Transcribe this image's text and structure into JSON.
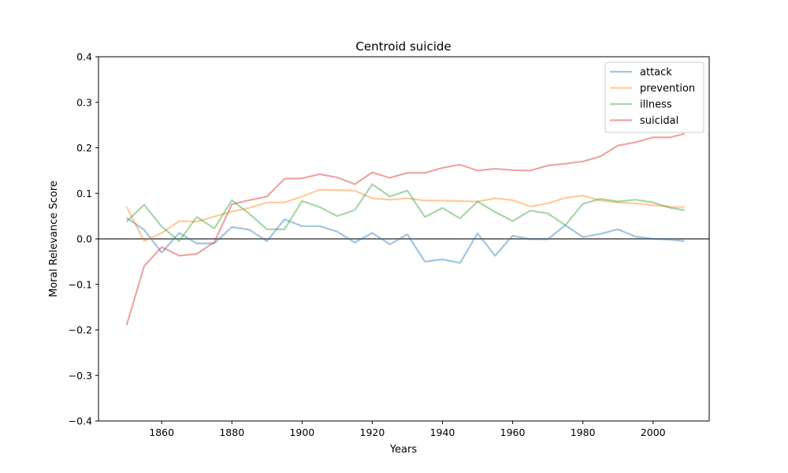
{
  "chart_data": {
    "type": "line",
    "title": "Centroid suicide",
    "xlabel": "Years",
    "ylabel": "Moral Relevance Score",
    "xlim": [
      1842,
      2016
    ],
    "ylim": [
      -0.4,
      0.4
    ],
    "xticks": [
      1860,
      1880,
      1900,
      1920,
      1940,
      1960,
      1980,
      2000
    ],
    "yticks": [
      -0.4,
      -0.3,
      -0.2,
      -0.1,
      0.0,
      0.1,
      0.2,
      0.3,
      0.4
    ],
    "xtick_labels": [
      "1860",
      "1880",
      "1900",
      "1920",
      "1940",
      "1960",
      "1980",
      "2000"
    ],
    "ytick_labels": [
      "−0.4",
      "−0.3",
      "−0.2",
      "−0.1",
      "0.0",
      "0.1",
      "0.2",
      "0.3",
      "0.4"
    ],
    "grid": false,
    "legend_position": "top-right",
    "reference_line": 0.0,
    "x": [
      1850,
      1855,
      1860,
      1865,
      1870,
      1875,
      1880,
      1885,
      1890,
      1895,
      1900,
      1905,
      1910,
      1915,
      1920,
      1925,
      1930,
      1935,
      1940,
      1945,
      1950,
      1955,
      1960,
      1965,
      1970,
      1975,
      1980,
      1985,
      1990,
      1995,
      2000,
      2005,
      2009
    ],
    "series": [
      {
        "name": "attack",
        "color": "#1f77b4",
        "values": [
          0.046,
          0.02,
          -0.03,
          0.013,
          -0.01,
          -0.01,
          0.026,
          0.02,
          -0.005,
          0.043,
          0.028,
          0.028,
          0.016,
          -0.008,
          0.013,
          -0.012,
          0.01,
          -0.05,
          -0.045,
          -0.053,
          0.012,
          -0.037,
          0.007,
          -0.001,
          -0.001,
          0.03,
          0.004,
          0.011,
          0.021,
          0.005,
          0.0,
          -0.002,
          -0.005
        ]
      },
      {
        "name": "prevention",
        "color": "#ff7f0e",
        "values": [
          0.071,
          -0.005,
          0.013,
          0.039,
          0.038,
          0.049,
          0.06,
          0.068,
          0.08,
          0.08,
          0.093,
          0.108,
          0.107,
          0.106,
          0.089,
          0.086,
          0.089,
          0.084,
          0.084,
          0.083,
          0.082,
          0.089,
          0.085,
          0.071,
          0.078,
          0.09,
          0.095,
          0.084,
          0.08,
          0.078,
          0.074,
          0.07,
          0.07
        ]
      },
      {
        "name": "illness",
        "color": "#2ca02c",
        "values": [
          0.038,
          0.075,
          0.027,
          -0.005,
          0.048,
          0.023,
          0.085,
          0.055,
          0.021,
          0.021,
          0.083,
          0.07,
          0.05,
          0.063,
          0.12,
          0.093,
          0.106,
          0.048,
          0.068,
          0.045,
          0.082,
          0.059,
          0.039,
          0.062,
          0.056,
          0.03,
          0.077,
          0.088,
          0.082,
          0.086,
          0.08,
          0.068,
          0.063
        ]
      },
      {
        "name": "suicidal",
        "color": "#d62728",
        "values": [
          -0.19,
          -0.06,
          -0.018,
          -0.037,
          -0.033,
          -0.007,
          0.076,
          0.085,
          0.093,
          0.132,
          0.133,
          0.142,
          0.135,
          0.12,
          0.146,
          0.134,
          0.145,
          0.145,
          0.156,
          0.163,
          0.15,
          0.154,
          0.151,
          0.15,
          0.161,
          0.165,
          0.17,
          0.181,
          0.205,
          0.212,
          0.223,
          0.223,
          0.231
        ]
      }
    ]
  }
}
